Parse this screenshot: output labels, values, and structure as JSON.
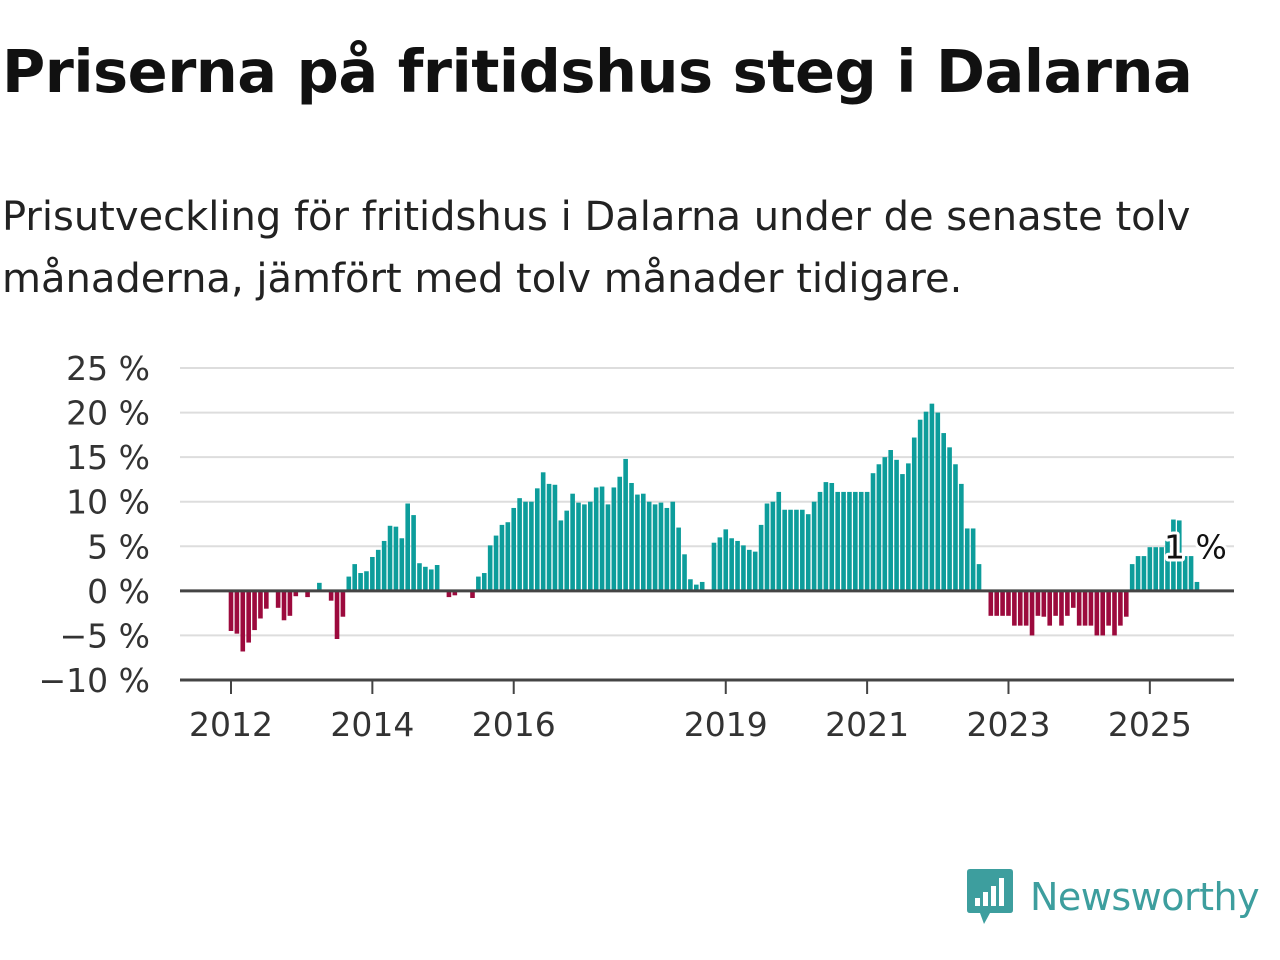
{
  "header": {
    "title": "Priserna på fritidshus steg i Dalarna",
    "subtitle": "Prisutveckling för fritidshus i Dalarna under de senaste tolv månaderna, jämfört med tolv månader tidigare."
  },
  "brand": {
    "name": "Newsworthy",
    "icon": "newsworthy-logo-icon",
    "color": "#3d9e9e"
  },
  "colors": {
    "positive": "#0d9d9b",
    "negative": "#9c0a3d",
    "gridline": "#dddddd",
    "zeroline": "#444444"
  },
  "chart_data": {
    "type": "bar",
    "title": "Priserna på fritidshus steg i Dalarna",
    "subtitle": "Prisutveckling för fritidshus i Dalarna under de senaste tolv månaderna, jämfört med tolv månader tidigare.",
    "xlabel": "",
    "ylabel": "",
    "ylim": [
      -10,
      25
    ],
    "grid": true,
    "y_ticks": [
      {
        "value": 25,
        "label": "25 %"
      },
      {
        "value": 20,
        "label": "20 %"
      },
      {
        "value": 15,
        "label": "15 %"
      },
      {
        "value": 10,
        "label": "10 %"
      },
      {
        "value": 5,
        "label": "5 %"
      },
      {
        "value": 0,
        "label": "0 %"
      },
      {
        "value": -5,
        "label": "−5 %"
      },
      {
        "value": -10,
        "label": "−10 %"
      }
    ],
    "x_ticks": [
      {
        "date": "2012-01",
        "label": "2012"
      },
      {
        "date": "2014-01",
        "label": "2014"
      },
      {
        "date": "2016-01",
        "label": "2016"
      },
      {
        "date": "2019-01",
        "label": "2019"
      },
      {
        "date": "2021-01",
        "label": "2021"
      },
      {
        "date": "2023-01",
        "label": "2023"
      },
      {
        "date": "2025-01",
        "label": "2025"
      }
    ],
    "end_label": "1 %",
    "series": [
      {
        "start": "2012-01",
        "frequency": "monthly",
        "values": [
          -4.5,
          -4.8,
          -6.8,
          -5.8,
          -4.4,
          -3.1,
          -2.0,
          0,
          -1.9,
          -3.3,
          -2.8,
          -0.6,
          0,
          -0.7,
          0,
          0.9,
          0,
          -1.1,
          -5.4,
          -2.9,
          1.6,
          3.0,
          2.0,
          2.2,
          3.8,
          4.6,
          5.6,
          7.3,
          7.2,
          5.9,
          9.8,
          8.5,
          3.1,
          2.7,
          2.4,
          2.9,
          0,
          -0.7,
          -0.5,
          0,
          0,
          -0.8,
          1.6,
          2.0,
          5.1,
          6.2,
          7.4,
          7.7,
          9.3,
          10.4,
          10.0,
          10.0,
          11.5,
          13.3,
          12.0,
          11.9,
          7.9,
          9.0,
          10.9,
          9.9,
          9.7,
          10.0,
          11.6,
          11.7,
          9.7,
          11.6,
          12.8,
          14.8,
          12.1,
          10.8,
          10.9,
          10.0,
          9.7,
          9.9,
          9.3,
          10.0,
          7.1,
          4.1,
          1.3,
          0.7,
          1.0,
          0,
          5.4,
          6.0,
          6.9,
          5.9,
          5.6,
          5.1,
          4.6,
          4.4,
          7.4,
          9.8,
          10.0,
          11.1,
          9.1,
          9.1,
          9.1,
          9.1,
          8.6,
          10.0,
          11.1,
          12.2,
          12.1,
          11.1,
          11.1,
          11.1,
          11.1,
          11.1,
          11.1,
          13.2,
          14.2,
          15.0,
          15.8,
          14.7,
          13.1,
          14.3,
          17.2,
          19.2,
          20.1,
          21.0,
          20.0,
          17.7,
          16.1,
          14.2,
          12.0,
          7.0,
          7.0,
          3.0,
          0,
          -2.8,
          -2.8,
          -2.8,
          -2.8,
          -3.9,
          -3.9,
          -3.9,
          -5.0,
          -2.8,
          -2.9,
          -3.9,
          -2.8,
          -3.9,
          -2.8,
          -1.9,
          -3.9,
          -3.9,
          -3.9,
          -5.0,
          -5.0,
          -3.9,
          -5.0,
          -3.9,
          -2.9,
          3.0,
          3.9,
          3.9,
          4.9,
          4.9,
          4.9,
          5.9,
          8.0,
          7.9,
          3.9,
          3.9,
          1.0
        ]
      }
    ]
  }
}
